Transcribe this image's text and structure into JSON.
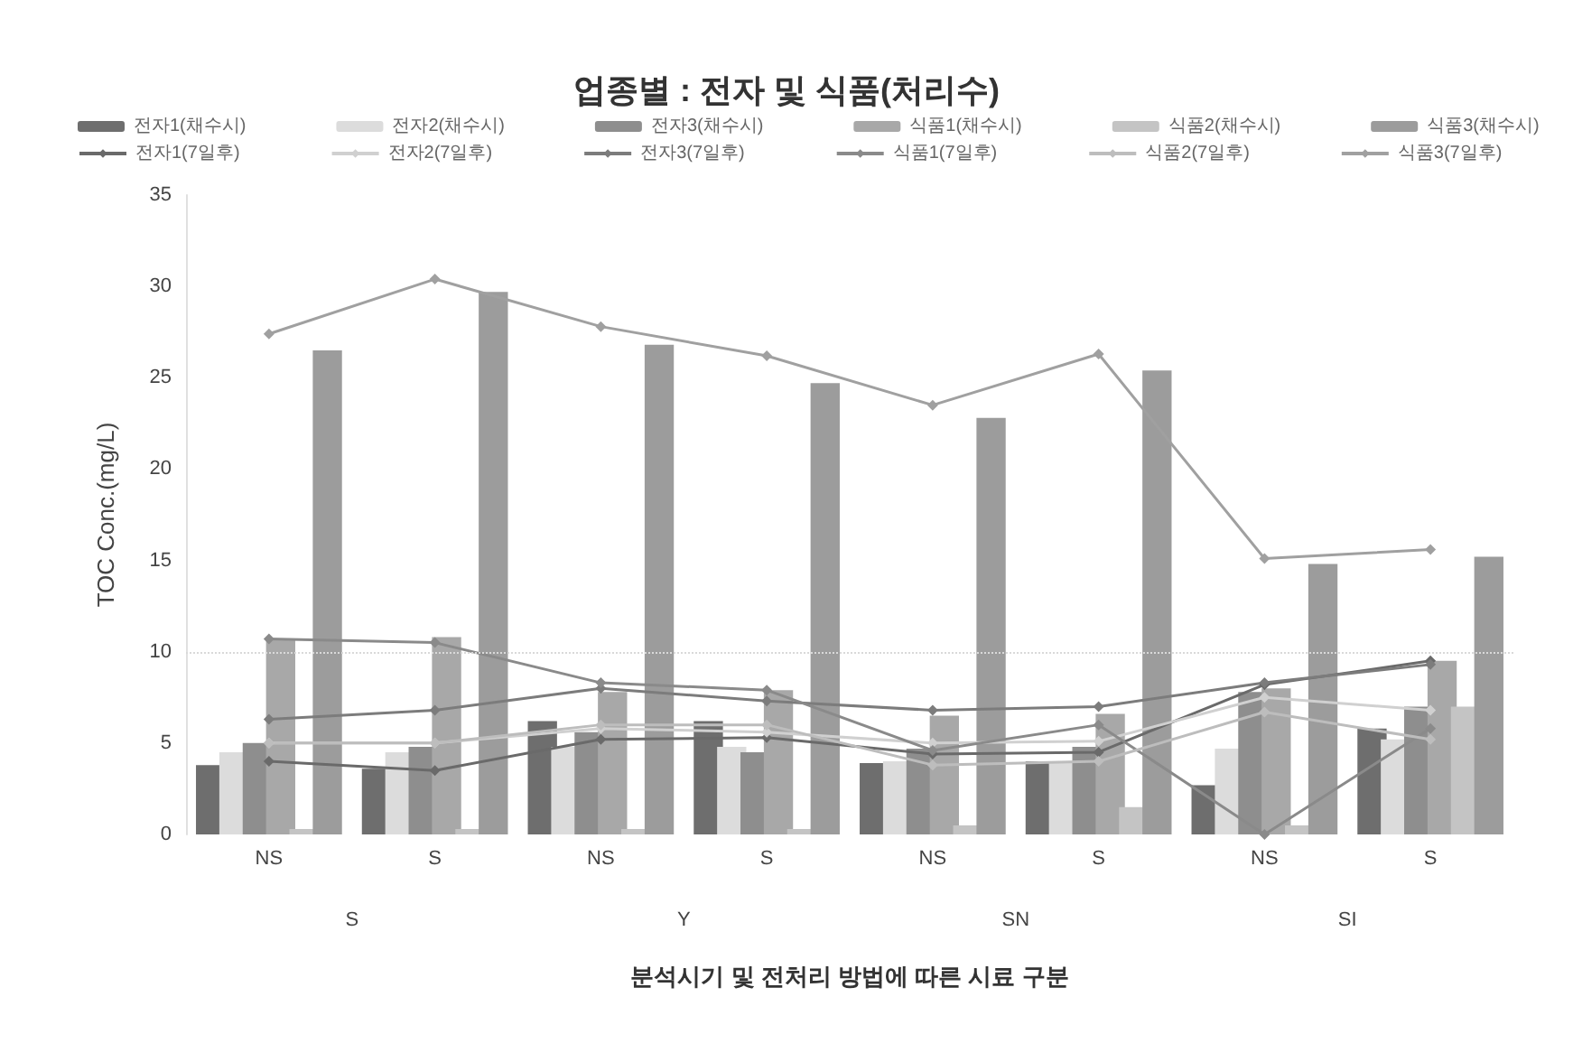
{
  "chart_data": {
    "type": "bar",
    "title": "업종별 : 전자 및 식품(처리수)",
    "xlabel": "분석시기 및 전처리 방법에 따른 시료 구분",
    "ylabel": "TOC Conc.(mg/L)",
    "categories": [
      "NS",
      "S",
      "NS",
      "S",
      "NS",
      "S",
      "NS",
      "S"
    ],
    "annotations": [
      "S",
      "Y",
      "SN",
      "SI"
    ],
    "ylim": [
      0,
      35
    ],
    "yticks": [
      0,
      5,
      10,
      15,
      20,
      25,
      30,
      35
    ],
    "grid": false,
    "legend": "top",
    "marker": "diamond",
    "ref_lines": [
      {
        "axis": "y",
        "value": 10,
        "color": "#d9d9d9",
        "line_style": "dotted"
      }
    ],
    "series": [
      {
        "name": "전자1(채수시)",
        "color": "#6e6e6e",
        "values": [
          3.8,
          3.6,
          6.2,
          6.2,
          3.9,
          4.0,
          2.7,
          5.8
        ]
      },
      {
        "name": "전자2(채수시)",
        "color": "#dcdcdc",
        "values": [
          4.5,
          4.5,
          4.8,
          4.8,
          4.0,
          4.0,
          4.7,
          5.2
        ]
      },
      {
        "name": "전자3(채수시)",
        "color": "#8e8e8e",
        "values": [
          5.0,
          4.8,
          5.6,
          4.5,
          4.7,
          4.8,
          7.8,
          7.0
        ]
      },
      {
        "name": "식품1(채수시)",
        "color": "#a8a8a8",
        "values": [
          10.7,
          10.8,
          7.8,
          7.9,
          6.5,
          6.6,
          8.0,
          9.5
        ]
      },
      {
        "name": "식품2(채수시)",
        "color": "#c4c4c4",
        "values": [
          0.3,
          0.3,
          0.3,
          0.3,
          0.5,
          1.5,
          0.5,
          7.0
        ]
      },
      {
        "name": "식품3(채수시)",
        "color": "#9c9c9c",
        "values": [
          26.5,
          29.7,
          26.8,
          24.7,
          22.8,
          25.4,
          14.8,
          15.2
        ]
      },
      {
        "name": "전자1(7일후)",
        "type": "line",
        "color": "#6a6a6a",
        "values": [
          4.0,
          3.5,
          5.2,
          5.3,
          4.4,
          4.5,
          8.2,
          9.5
        ]
      },
      {
        "name": "전자2(7일후)",
        "type": "line",
        "color": "#d0d0d0",
        "values": [
          5.0,
          5.0,
          5.8,
          5.6,
          5.0,
          5.1,
          7.5,
          6.8
        ]
      },
      {
        "name": "전자3(7일후)",
        "type": "line",
        "color": "#7c7c7c",
        "values": [
          6.3,
          6.8,
          8.0,
          7.3,
          6.8,
          7.0,
          8.3,
          9.3
        ]
      },
      {
        "name": "식품1(7일후)",
        "type": "line",
        "color": "#8a8a8a",
        "values": [
          10.7,
          10.5,
          8.3,
          7.9,
          4.6,
          6.0,
          0.0,
          5.8
        ]
      },
      {
        "name": "식품2(7일후)",
        "type": "line",
        "color": "#bdbdbd",
        "values": [
          5.0,
          5.0,
          6.0,
          6.0,
          3.8,
          4.0,
          6.7,
          5.2
        ]
      },
      {
        "name": "식품3(7일후)",
        "type": "line",
        "color": "#a0a0a0",
        "values": [
          27.4,
          30.4,
          27.8,
          26.2,
          23.5,
          26.3,
          15.1,
          15.6
        ]
      }
    ]
  }
}
